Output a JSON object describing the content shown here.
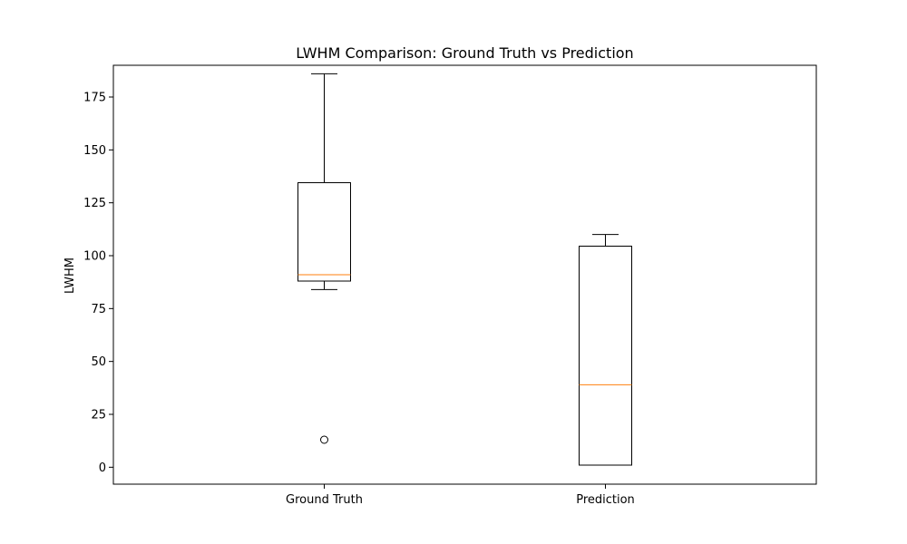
{
  "chart_data": {
    "type": "box",
    "title": "LWHM Comparison: Ground Truth vs Prediction",
    "xlabel": "",
    "ylabel": "LWHM",
    "ylim": [
      -8,
      190
    ],
    "yticks": [
      0,
      25,
      50,
      75,
      100,
      125,
      150,
      175
    ],
    "grid": false,
    "categories": [
      "Ground Truth",
      "Prediction"
    ],
    "boxes": [
      {
        "name": "Ground Truth",
        "whisker_low": 84,
        "q1": 88,
        "median": 91,
        "q3": 134.5,
        "whisker_high": 186,
        "outliers": [
          13
        ]
      },
      {
        "name": "Prediction",
        "whisker_low": 1,
        "q1": 1,
        "median": 39,
        "q3": 104.5,
        "whisker_high": 110,
        "outliers": []
      }
    ],
    "colors": {
      "box": "#000000",
      "median": "#ff7f0e",
      "frame": "#000000"
    }
  }
}
